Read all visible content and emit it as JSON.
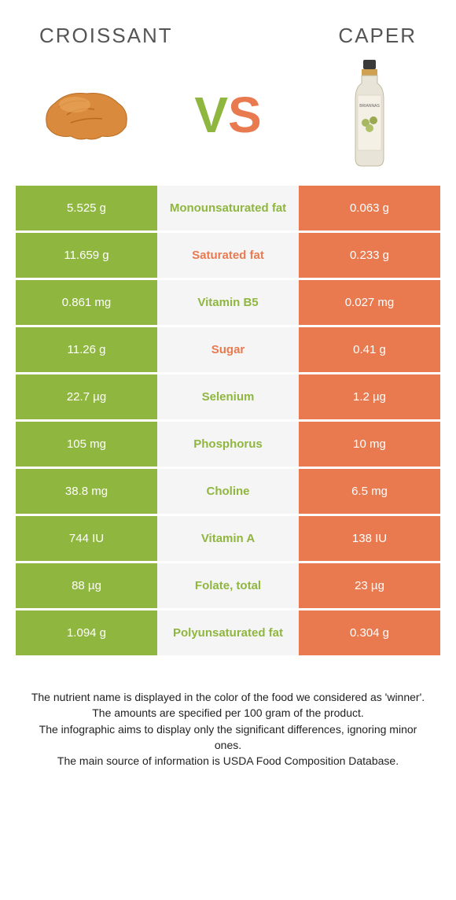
{
  "header": {
    "left": "Croissant",
    "right": "Caper"
  },
  "vs": {
    "v": "V",
    "s": "S"
  },
  "colors": {
    "green": "#8fb63f",
    "orange": "#e97a50",
    "mid_bg": "#f5f5f5",
    "text_white": "#ffffff"
  },
  "table": {
    "rows": [
      {
        "left": "5.525 g",
        "label": "Monounsaturated fat",
        "right": "0.063 g",
        "winner": "green"
      },
      {
        "left": "11.659 g",
        "label": "Saturated fat",
        "right": "0.233 g",
        "winner": "orange"
      },
      {
        "left": "0.861 mg",
        "label": "Vitamin B5",
        "right": "0.027 mg",
        "winner": "green"
      },
      {
        "left": "11.26 g",
        "label": "Sugar",
        "right": "0.41 g",
        "winner": "orange"
      },
      {
        "left": "22.7 µg",
        "label": "Selenium",
        "right": "1.2 µg",
        "winner": "green"
      },
      {
        "left": "105 mg",
        "label": "Phosphorus",
        "right": "10 mg",
        "winner": "green"
      },
      {
        "left": "38.8 mg",
        "label": "Choline",
        "right": "6.5 mg",
        "winner": "green"
      },
      {
        "left": "744 IU",
        "label": "Vitamin A",
        "right": "138 IU",
        "winner": "green"
      },
      {
        "left": "88 µg",
        "label": "Folate, total",
        "right": "23 µg",
        "winner": "green"
      },
      {
        "left": "1.094 g",
        "label": "Polyunsaturated fat",
        "right": "0.304 g",
        "winner": "green"
      }
    ]
  },
  "footer": {
    "line1": "The nutrient name is displayed in the color of the food we considered as 'winner'.",
    "line2": "The amounts are specified per 100 gram of the product.",
    "line3": "The infographic aims to display only the significant differences, ignoring minor ones.",
    "line4": "The main source of information is USDA Food Composition Database."
  }
}
